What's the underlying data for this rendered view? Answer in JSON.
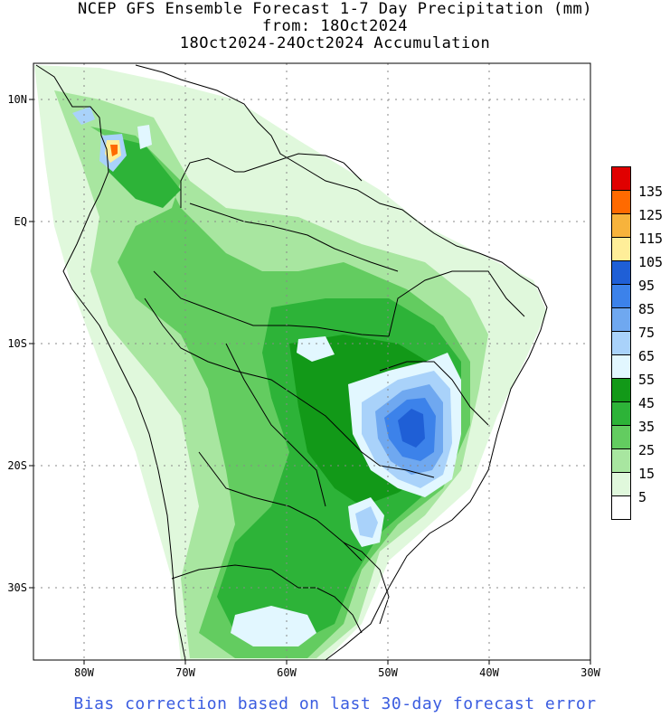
{
  "title": {
    "line1": "NCEP GFS Ensemble Forecast 1-7 Day Precipitation (mm)",
    "line2": "from: 18Oct2024",
    "line3": "18Oct2024-24Oct2024 Accumulation"
  },
  "footer": "Bias correction based on last 30-day forecast error",
  "map": {
    "lon_range": [
      -85,
      -30
    ],
    "lat_range": [
      -37,
      13
    ],
    "x_ticks": [
      "80W",
      "70W",
      "60W",
      "50W",
      "40W",
      "30W"
    ],
    "y_ticks": [
      "10N",
      "EQ",
      "10S",
      "20S",
      "30S"
    ]
  },
  "legend": {
    "labels": [
      "135",
      "125",
      "115",
      "105",
      "95",
      "85",
      "75",
      "65",
      "55",
      "45",
      "35",
      "25",
      "15",
      "5"
    ],
    "colors": [
      "#e00000",
      "#ff6a00",
      "#f7b33c",
      "#ffee99",
      "#1f5fd6",
      "#3c82ea",
      "#6fa8f0",
      "#a9d2fa",
      "#e2f7ff",
      "#129918",
      "#2db338",
      "#63cc60",
      "#a8e6a0",
      "#e0f8dc",
      "#ffffff"
    ]
  }
}
